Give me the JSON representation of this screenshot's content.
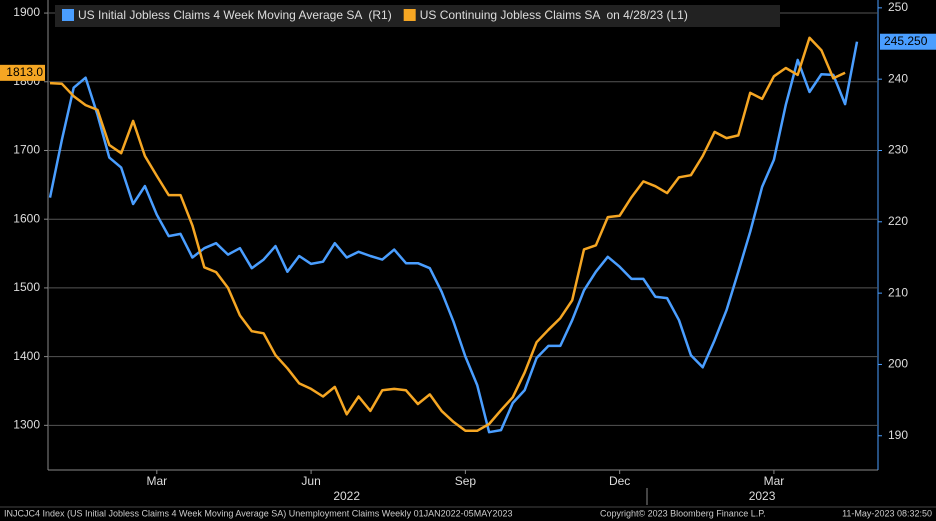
{
  "chart_data": {
    "type": "line",
    "legend": "top-left",
    "grid": true,
    "categories": [
      null,
      null,
      null,
      null,
      null,
      null,
      null,
      null,
      null,
      "Mar",
      null,
      null,
      null,
      null,
      null,
      null,
      null,
      null,
      null,
      null,
      null,
      null,
      "Jun",
      null,
      null,
      null,
      null,
      null,
      null,
      null,
      null,
      null,
      null,
      null,
      null,
      "Sep",
      null,
      null,
      null,
      null,
      null,
      null,
      null,
      null,
      null,
      null,
      null,
      null,
      "Dec",
      null,
      null,
      null,
      null,
      null,
      null,
      null,
      null,
      null,
      null,
      null,
      null,
      "Mar",
      null,
      null,
      null,
      null,
      null,
      null,
      null
    ],
    "categories2": [
      null,
      null,
      null,
      null,
      null,
      null,
      null,
      null,
      null,
      null,
      null,
      null,
      null,
      null,
      null,
      null,
      null,
      null,
      null,
      null,
      null,
      null,
      null,
      null,
      null,
      "2022",
      null,
      null,
      null,
      null,
      null,
      null,
      null,
      null,
      null,
      null,
      null,
      null,
      null,
      null,
      null,
      null,
      null,
      null,
      null,
      null,
      null,
      null,
      null,
      null,
      null,
      null,
      null,
      null,
      null,
      null,
      null,
      null,
      null,
      null,
      "2023",
      null,
      null,
      null,
      null,
      null,
      null,
      null,
      null
    ],
    "ylim": [
      1235,
      1919
    ],
    "yticks": [
      1300,
      1400,
      1500,
      1600,
      1700,
      1800,
      1900
    ],
    "y2lim": [
      185.2,
      251.1
    ],
    "y2ticks": [
      190,
      200,
      210,
      220,
      230,
      240,
      250
    ],
    "series": [
      {
        "name": "US Initial Jobless Claims 4 Week Moving Average SA  (R1)",
        "color": "#4a9eff",
        "axis": "y2",
        "values": [
          223.4,
          231.5,
          238.8,
          240.2,
          235.0,
          229.0,
          227.6,
          222.5,
          225.0,
          221.0,
          218.0,
          218.3,
          215.0,
          216.3,
          217.0,
          215.4,
          216.3,
          213.5,
          214.7,
          216.6,
          213.0,
          215.2,
          214.1,
          214.4,
          217.0,
          215.0,
          215.8,
          215.2,
          214.7,
          216.1,
          214.2,
          214.2,
          213.5,
          210.2,
          206.0,
          201.1,
          197.1,
          190.5,
          190.8,
          194.6,
          196.4,
          200.9,
          202.6,
          202.6,
          206.2,
          210.4,
          213.0,
          215.1,
          213.7,
          212.0,
          212.0,
          209.5,
          209.3,
          206.2,
          201.3,
          199.6,
          203.4,
          207.6,
          213.0,
          218.6,
          224.9,
          228.7,
          236.4,
          242.7,
          238.2,
          240.7,
          240.6,
          236.5,
          245.25
        ],
        "value_labels": [
          null,
          null,
          null,
          null,
          null,
          null,
          null,
          null,
          null,
          null,
          null,
          null,
          null,
          null,
          null,
          null,
          null,
          null,
          null,
          null,
          null,
          null,
          null,
          null,
          null,
          null,
          null,
          null,
          null,
          null,
          null,
          null,
          null,
          null,
          null,
          null,
          null,
          null,
          null,
          null,
          null,
          null,
          null,
          null,
          null,
          null,
          null,
          null,
          null,
          null,
          null,
          null,
          null,
          null,
          null,
          null,
          null,
          null,
          null,
          null,
          null,
          null,
          null,
          null,
          null,
          null,
          null,
          null,
          "245.250"
        ]
      },
      {
        "name": "US Continuing Jobless Claims SA  on 4/28/23 (L1)",
        "color": "#f5a623",
        "values": [
          1798,
          1797,
          1779,
          1766,
          1759,
          1708,
          1696,
          1743,
          1692,
          1663,
          1635,
          1635,
          1591,
          1530,
          1523,
          1500,
          1460,
          1437,
          1434,
          1402,
          1383,
          1361,
          1353,
          1342,
          1356,
          1316,
          1342,
          1321,
          1351,
          1353,
          1351,
          1331,
          1345,
          1321,
          1305,
          1292,
          1292,
          1302,
          1322,
          1341,
          1377,
          1421,
          1439,
          1456,
          1482,
          1556,
          1562,
          1603,
          1605,
          1632,
          1655,
          1648,
          1638,
          1661,
          1664,
          1692,
          1727,
          1718,
          1722,
          1784,
          1775,
          1808,
          1820,
          1810,
          1864,
          1846,
          1805,
          1813,
          null
        ],
        "value_labels": [
          null,
          null,
          null,
          null,
          null,
          null,
          null,
          null,
          null,
          null,
          null,
          null,
          null,
          null,
          null,
          null,
          null,
          null,
          null,
          null,
          null,
          null,
          null,
          null,
          null,
          null,
          null,
          null,
          null,
          null,
          null,
          null,
          null,
          null,
          null,
          null,
          null,
          null,
          null,
          null,
          null,
          null,
          null,
          null,
          null,
          null,
          null,
          null,
          null,
          null,
          null,
          null,
          null,
          null,
          null,
          null,
          null,
          null,
          null,
          null,
          null,
          null,
          null,
          null,
          null,
          null,
          null,
          "1813.0",
          null
        ]
      }
    ],
    "footer_left": "INJCJC4 Index (US Initial Jobless Claims 4 Week Moving Average SA) Unemployment Claims  Weekly 01JAN2022-05MAY2023",
    "footer_center": "Copyright© 2023 Bloomberg Finance L.P.",
    "footer_right": "11-May-2023 08:32:50"
  }
}
